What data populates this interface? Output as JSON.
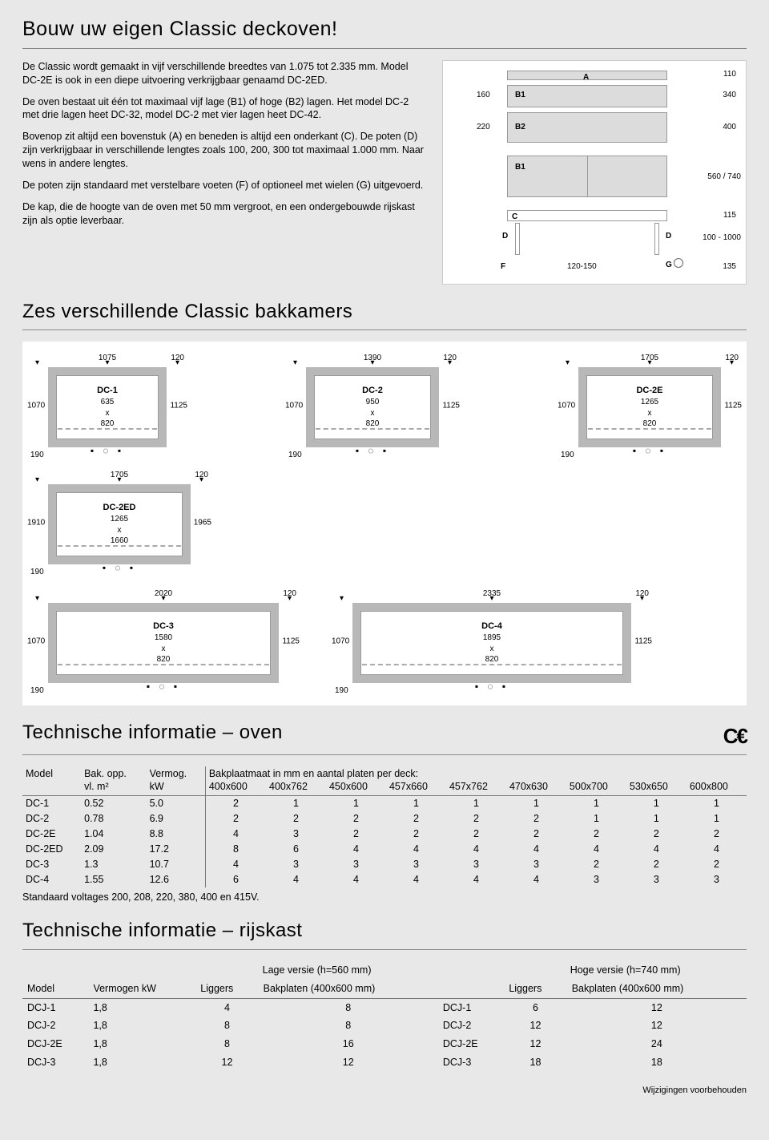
{
  "title": "Bouw uw eigen Classic deckoven!",
  "intro": {
    "p1": "De Classic wordt gemaakt in vijf verschillende breedtes van 1.075 tot 2.335 mm. Model DC-2E is ook in een diepe uitvoering verkrijgbaar genaamd DC-2ED.",
    "p2": "De oven bestaat uit één tot maximaal vijf lage (B1) of hoge (B2) lagen. Het model DC-2 met drie lagen heet DC-32, model DC-2 met vier lagen heet DC-42.",
    "p3": "Bovenop zit altijd een bovenstuk (A) en beneden is altijd een onderkant (C). De poten (D) zijn verkrijgbaar in verschillende lengtes zoals 100, 200, 300 tot maximaal 1.000 mm. Naar wens in andere lengtes.",
    "p4": "De poten zijn standaard met verstelbare voeten (F) of optioneel met wielen (G) uitgevoerd.",
    "p5": "De kap, die de hoogte van de oven met 50 mm vergroot, en een ondergebouwde rijskast zijn als optie leverbaar."
  },
  "fig_labels": {
    "A": "A",
    "B1": "B1",
    "B2": "B2",
    "C": "C",
    "D": "D",
    "F": "F",
    "G": "G"
  },
  "fig_dims": {
    "d110": "110",
    "d160": "160",
    "d220": "220",
    "d340": "340",
    "d400": "400",
    "d560_740": "560 / 740",
    "d115": "115",
    "d100_1000": "100 - 1000",
    "d120_150": "120-150",
    "d135": "135"
  },
  "section_chambers": "Zes verschillende Classic bakkamers",
  "chambers": [
    {
      "name": "DC-1",
      "size1": "635",
      "x": "x",
      "size2": "820",
      "wtop": "1075",
      "wright": "120",
      "hleft": "1070",
      "hright": "1125",
      "bl": "190"
    },
    {
      "name": "DC-2",
      "size1": "950",
      "x": "x",
      "size2": "820",
      "wtop": "1390",
      "wright": "120",
      "hleft": "1070",
      "hright": "1125",
      "bl": "190"
    },
    {
      "name": "DC-2E",
      "size1": "1265",
      "x": "x",
      "size2": "820",
      "wtop": "1705",
      "wright": "120",
      "hleft": "1070",
      "hright": "1125",
      "bl": "190"
    },
    {
      "name": "DC-2ED",
      "size1": "1265",
      "x": "x",
      "size2": "1660",
      "wtop": "1705",
      "wright": "120",
      "hleft": "1910",
      "hright": "1965",
      "bl": "190"
    },
    {
      "name": "DC-3",
      "size1": "1580",
      "x": "x",
      "size2": "820",
      "wtop": "2020",
      "wright": "120",
      "hleft": "1070",
      "hright": "1125",
      "bl": "190"
    },
    {
      "name": "DC-4",
      "size1": "1895",
      "x": "x",
      "size2": "820",
      "wtop": "2335",
      "wright": "120",
      "hleft": "1070",
      "hright": "1125",
      "bl": "190"
    }
  ],
  "section_tech_oven": "Technische informatie – oven",
  "ce_mark": "C€",
  "oven_table": {
    "hdr": {
      "model": "Model",
      "bakopp": "Bak. opp.",
      "vlm2": "vl. m²",
      "vermog": "Vermog.",
      "kw": "kW",
      "bakplaat": "Bakplaatmaat in mm en aantal platen per deck:",
      "cols": [
        "400x600",
        "400x762",
        "450x600",
        "457x660",
        "457x762",
        "470x630",
        "500x700",
        "530x650",
        "600x800"
      ]
    },
    "rows": [
      {
        "model": "DC-1",
        "opp": "0.52",
        "kw": "5.0",
        "v": [
          "2",
          "1",
          "1",
          "1",
          "1",
          "1",
          "1",
          "1",
          "1"
        ]
      },
      {
        "model": "DC-2",
        "opp": "0.78",
        "kw": "6.9",
        "v": [
          "2",
          "2",
          "2",
          "2",
          "2",
          "2",
          "1",
          "1",
          "1"
        ]
      },
      {
        "model": "DC-2E",
        "opp": "1.04",
        "kw": "8.8",
        "v": [
          "4",
          "3",
          "2",
          "2",
          "2",
          "2",
          "2",
          "2",
          "2"
        ]
      },
      {
        "model": "DC-2ED",
        "opp": "2.09",
        "kw": "17.2",
        "v": [
          "8",
          "6",
          "4",
          "4",
          "4",
          "4",
          "4",
          "4",
          "4"
        ]
      },
      {
        "model": "DC-3",
        "opp": "1.3",
        "kw": "10.7",
        "v": [
          "4",
          "3",
          "3",
          "3",
          "3",
          "3",
          "2",
          "2",
          "2"
        ]
      },
      {
        "model": "DC-4",
        "opp": "1.55",
        "kw": "12.6",
        "v": [
          "6",
          "4",
          "4",
          "4",
          "4",
          "4",
          "3",
          "3",
          "3"
        ]
      }
    ],
    "note": "Standaard voltages 200, 208, 220, 380, 400 en 415V."
  },
  "section_tech_rijs": "Technische informatie – rijskast",
  "rijs_table": {
    "hdr": {
      "model": "Model",
      "verm": "Vermogen kW",
      "low": "Lage versie (h=560 mm)",
      "high": "Hoge versie (h=740 mm)",
      "liggers": "Liggers",
      "bakpl": "Bakplaten  (400x600 mm)",
      "bakpl2": "Bakplaten (400x600 mm)"
    },
    "rows": [
      {
        "m": "DCJ-1",
        "kw": "1,8",
        "ll": "4",
        "lp": "8",
        "m2": "DCJ-1",
        "hl": "6",
        "hp": "12"
      },
      {
        "m": "DCJ-2",
        "kw": "1,8",
        "ll": "8",
        "lp": "8",
        "m2": "DCJ-2",
        "hl": "12",
        "hp": "12"
      },
      {
        "m": "DCJ-2E",
        "kw": "1,8",
        "ll": "8",
        "lp": "16",
        "m2": "DCJ-2E",
        "hl": "12",
        "hp": "24"
      },
      {
        "m": "DCJ-3",
        "kw": "1,8",
        "ll": "12",
        "lp": "12",
        "m2": "DCJ-3",
        "hl": "18",
        "hp": "18"
      }
    ]
  },
  "footer": "Wijzigingen voorbehouden"
}
